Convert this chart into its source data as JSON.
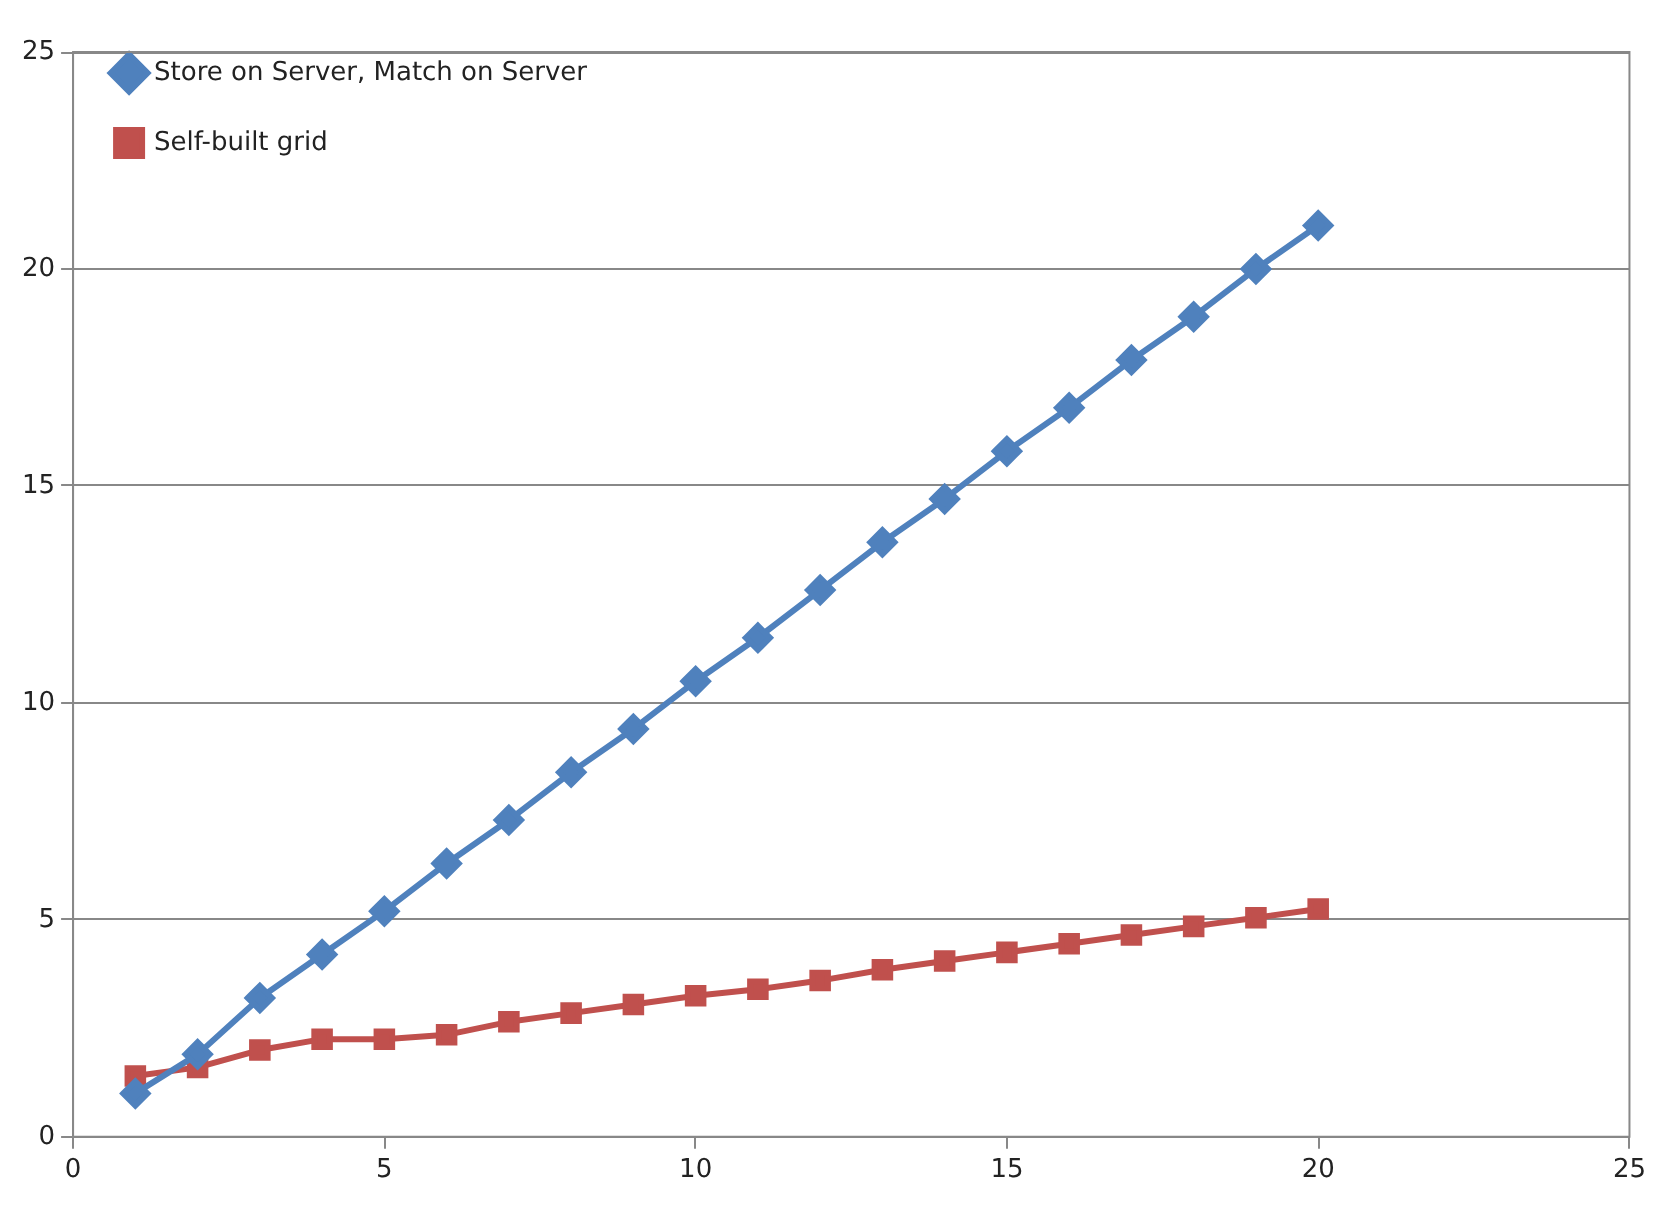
{
  "chart_data": {
    "type": "line",
    "x": [
      1,
      2,
      3,
      4,
      5,
      6,
      7,
      8,
      9,
      10,
      11,
      12,
      13,
      14,
      15,
      16,
      17,
      18,
      19,
      20
    ],
    "series": [
      {
        "name": "Store on Server, Match on Server",
        "color": "#4f81bd",
        "marker": "diamond",
        "values": [
          1.0,
          1.9,
          3.2,
          4.2,
          5.2,
          6.3,
          7.3,
          8.4,
          9.4,
          10.5,
          11.5,
          12.6,
          13.7,
          14.7,
          15.8,
          16.8,
          17.9,
          18.9,
          20.0,
          21.0
        ]
      },
      {
        "name": "Self-built grid",
        "color": "#c0504d",
        "marker": "square",
        "values": [
          1.4,
          1.6,
          2.0,
          2.25,
          2.25,
          2.35,
          2.65,
          2.85,
          3.05,
          3.25,
          3.4,
          3.6,
          3.85,
          4.05,
          4.25,
          4.45,
          4.65,
          4.85,
          5.05,
          5.25
        ]
      }
    ],
    "xlim": [
      0,
      25
    ],
    "xticks": [
      0,
      5,
      10,
      15,
      20,
      25
    ],
    "ylim": [
      0,
      25
    ],
    "yticks": [
      0,
      5,
      10,
      15,
      20,
      25
    ],
    "grid": "y",
    "legend": "top left"
  }
}
